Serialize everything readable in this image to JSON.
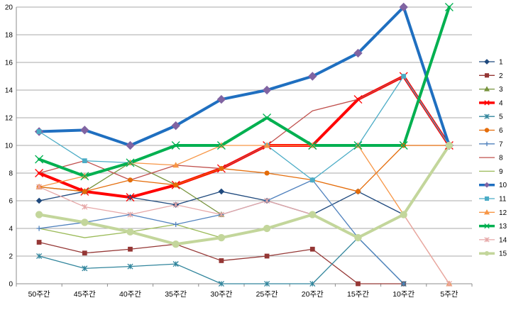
{
  "chart_data": {
    "type": "line",
    "title": "",
    "xlabel": "",
    "ylabel": "",
    "categories": [
      "50주간",
      "45주간",
      "40주간",
      "35주간",
      "30주간",
      "25주간",
      "20주간",
      "15주간",
      "10주간",
      "5주간"
    ],
    "ylim": [
      0,
      20
    ],
    "yticks": [
      0,
      2,
      4,
      6,
      8,
      10,
      12,
      14,
      16,
      18,
      20
    ],
    "grid": true,
    "legend_position": "right",
    "series": [
      {
        "name": "1",
        "color": "#1F497D",
        "marker": "diamond",
        "bold": false,
        "values": [
          6,
          6.67,
          6.25,
          5.71,
          6.67,
          6,
          5,
          6.67,
          5,
          null
        ]
      },
      {
        "name": "2",
        "color": "#953735",
        "marker": "square",
        "bold": false,
        "values": [
          3,
          2.22,
          2.5,
          2.86,
          1.67,
          2,
          2.5,
          0,
          0,
          null
        ]
      },
      {
        "name": "3",
        "color": "#77933C",
        "marker": "triangle",
        "bold": false,
        "values": [
          7,
          6.67,
          8.75,
          7.14,
          5,
          null,
          null,
          null,
          null,
          null
        ]
      },
      {
        "name": "4",
        "color": "#FF0000",
        "marker": "x",
        "bold": true,
        "values": [
          8,
          6.67,
          6.25,
          7.14,
          8.33,
          10,
          10,
          13.33,
          15,
          10
        ]
      },
      {
        "name": "5",
        "color": "#31859C",
        "marker": "star",
        "bold": false,
        "values": [
          2,
          1.11,
          1.25,
          1.43,
          0,
          0,
          0,
          3.33,
          0,
          null
        ]
      },
      {
        "name": "6",
        "color": "#E46C0A",
        "marker": "circle",
        "bold": false,
        "values": [
          7,
          6.67,
          7.5,
          7.14,
          8.33,
          8,
          7.5,
          6.67,
          10,
          10
        ]
      },
      {
        "name": "7",
        "color": "#4F81BD",
        "marker": "plus",
        "bold": false,
        "values": [
          4,
          4.44,
          5,
          4.29,
          5,
          6,
          7.5,
          3.33,
          0,
          null
        ]
      },
      {
        "name": "8",
        "color": "#C0504D",
        "marker": "none",
        "bold": false,
        "values": [
          8,
          8.89,
          7.5,
          8.57,
          8.33,
          10,
          12.5,
          13.33,
          15,
          10
        ]
      },
      {
        "name": "9",
        "color": "#9BBB59",
        "marker": "none",
        "bold": false,
        "values": [
          4,
          3.33,
          3.75,
          4.29,
          3.33,
          null,
          null,
          null,
          null,
          null
        ]
      },
      {
        "name": "10",
        "color": "#1F6FC0",
        "marker": "diamond",
        "bold": true,
        "values": [
          11,
          11.11,
          10,
          11.43,
          13.33,
          14,
          15,
          16.67,
          20,
          10
        ]
      },
      {
        "name": "11",
        "color": "#4BACC6",
        "marker": "square",
        "bold": false,
        "values": [
          11,
          8.89,
          8.75,
          null,
          null,
          10,
          7.5,
          10,
          15,
          10
        ]
      },
      {
        "name": "12",
        "color": "#F79646",
        "marker": "triangle",
        "bold": false,
        "values": [
          7,
          7.78,
          8.75,
          8.57,
          10,
          10,
          10,
          10,
          5,
          0
        ]
      },
      {
        "name": "13",
        "color": "#00B050",
        "marker": "x",
        "bold": true,
        "values": [
          9,
          7.78,
          8.75,
          10,
          10,
          12,
          10,
          10,
          10,
          20
        ]
      },
      {
        "name": "14",
        "color": "#E6A7A7",
        "marker": "star",
        "bold": false,
        "values": [
          7,
          5.56,
          5,
          5.71,
          5,
          6,
          5,
          3.33,
          5,
          0
        ]
      },
      {
        "name": "15",
        "color": "#C3D69B",
        "marker": "circle",
        "bold": true,
        "values": [
          5,
          4.44,
          3.75,
          2.86,
          3.33,
          4,
          5,
          3.33,
          5,
          10
        ]
      }
    ]
  }
}
